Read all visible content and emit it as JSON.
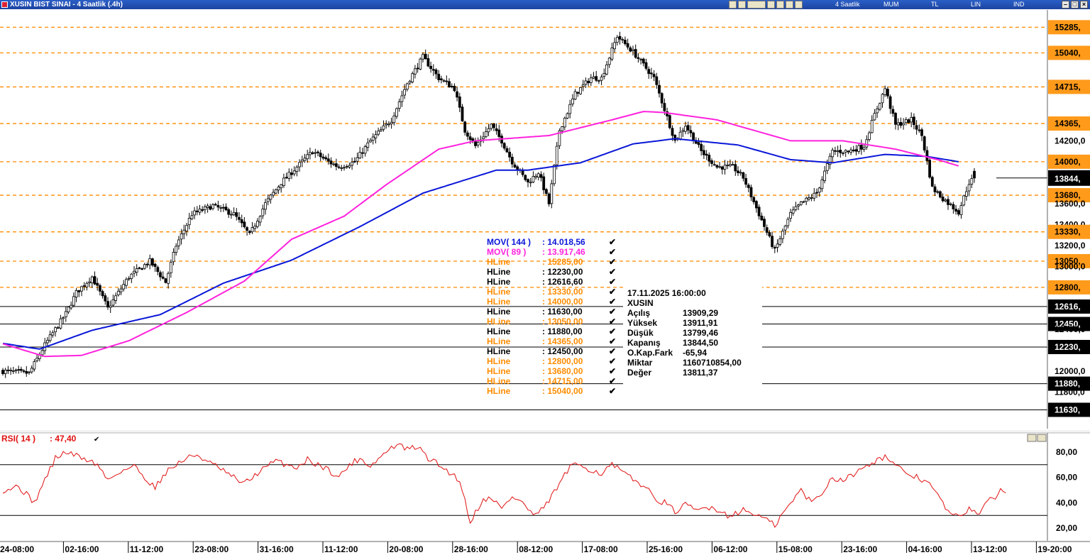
{
  "window": {
    "title": "XUSIN BIST SINAI - 4 Saatlik (.4h)",
    "toolbar": [
      "4 Saatlik",
      "MUM",
      "TL",
      "LIN",
      "IND"
    ]
  },
  "chart_data": {
    "type": "candlestick",
    "symbol": "XUSIN",
    "price_axis": {
      "range": [
        11450,
        15450
      ],
      "ticks": [
        {
          "v": 15285,
          "label": "15285,",
          "style": "hline-orange"
        },
        {
          "v": 15040,
          "label": "15040,",
          "style": "hline-orange"
        },
        {
          "v": 14715,
          "label": "14715,",
          "style": "hline-orange"
        },
        {
          "v": 14365,
          "label": "14365,",
          "style": "hline-orange"
        },
        {
          "v": 14200,
          "label": "14200,0",
          "style": "plain"
        },
        {
          "v": 14000,
          "label": "14000,",
          "style": "hline-orange"
        },
        {
          "v": 13844.5,
          "label": "13844,",
          "style": "last"
        },
        {
          "v": 13680,
          "label": "13680,",
          "style": "hline-orange"
        },
        {
          "v": 13600,
          "label": "13600,0",
          "style": "plain"
        },
        {
          "v": 13400,
          "label": "13400,0",
          "style": "plain"
        },
        {
          "v": 13330,
          "label": "13330,",
          "style": "hline-orange"
        },
        {
          "v": 13200,
          "label": "13200,0",
          "style": "plain"
        },
        {
          "v": 13050,
          "label": "13050,",
          "style": "hline-orange"
        },
        {
          "v": 13000,
          "label": "13000,0",
          "style": "plain"
        },
        {
          "v": 12800,
          "label": "12800,",
          "style": "hline-orange"
        },
        {
          "v": 12616.6,
          "label": "12616,",
          "style": "hline-black"
        },
        {
          "v": 12450,
          "label": "12450,",
          "style": "hline-black"
        },
        {
          "v": 12400,
          "label": "12400,0",
          "style": "plain"
        },
        {
          "v": 12230,
          "label": "12230,",
          "style": "hline-black"
        },
        {
          "v": 12000,
          "label": "12000,0",
          "style": "plain"
        },
        {
          "v": 11880,
          "label": "11880,",
          "style": "hline-black"
        },
        {
          "v": 11800,
          "label": "11800,0",
          "style": "plain"
        },
        {
          "v": 11630,
          "label": "11630,",
          "style": "hline-black"
        }
      ]
    },
    "x_labels": [
      "24-08:00",
      "02-16:00",
      "11-12:00",
      "23-08:00",
      "31-16:00",
      "11-12:00",
      "20-08:00",
      "28-16:00",
      "08-12:00",
      "17-08:00",
      "25-16:00",
      "06-12:00",
      "15-08:00",
      "23-16:00",
      "04-16:00",
      "13-12:00",
      "19-20:00"
    ],
    "close_anchors": [
      [
        0,
        12000
      ],
      [
        10,
        11980
      ],
      [
        16,
        12250
      ],
      [
        24,
        12550
      ],
      [
        28,
        12750
      ],
      [
        34,
        12900
      ],
      [
        40,
        12600
      ],
      [
        48,
        12900
      ],
      [
        56,
        13050
      ],
      [
        62,
        12850
      ],
      [
        66,
        13200
      ],
      [
        72,
        13500
      ],
      [
        80,
        13580
      ],
      [
        88,
        13500
      ],
      [
        94,
        13300
      ],
      [
        100,
        13600
      ],
      [
        106,
        13800
      ],
      [
        114,
        14000
      ],
      [
        118,
        14100
      ],
      [
        124,
        14000
      ],
      [
        128,
        13950
      ],
      [
        134,
        14000
      ],
      [
        140,
        14200
      ],
      [
        148,
        14400
      ],
      [
        154,
        14750
      ],
      [
        160,
        15000
      ],
      [
        166,
        14800
      ],
      [
        172,
        14700
      ],
      [
        176,
        14300
      ],
      [
        180,
        14150
      ],
      [
        186,
        14350
      ],
      [
        190,
        14200
      ],
      [
        194,
        14000
      ],
      [
        200,
        13800
      ],
      [
        204,
        13900
      ],
      [
        208,
        13600
      ],
      [
        212,
        14300
      ],
      [
        218,
        14650
      ],
      [
        224,
        14800
      ],
      [
        228,
        14800
      ],
      [
        234,
        15200
      ],
      [
        240,
        15050
      ],
      [
        248,
        14800
      ],
      [
        252,
        14500
      ],
      [
        256,
        14200
      ],
      [
        260,
        14350
      ],
      [
        266,
        14100
      ],
      [
        272,
        13950
      ],
      [
        278,
        13950
      ],
      [
        282,
        13850
      ],
      [
        288,
        13500
      ],
      [
        294,
        13150
      ],
      [
        300,
        13500
      ],
      [
        304,
        13600
      ],
      [
        310,
        13700
      ],
      [
        316,
        14100
      ],
      [
        322,
        14100
      ],
      [
        328,
        14150
      ],
      [
        332,
        14450
      ],
      [
        336,
        14700
      ],
      [
        340,
        14350
      ],
      [
        346,
        14400
      ],
      [
        350,
        14250
      ],
      [
        354,
        13750
      ],
      [
        358,
        13650
      ],
      [
        364,
        13520
      ],
      [
        368,
        13800
      ],
      [
        370,
        13844.5
      ]
    ],
    "series": [
      {
        "name": "MOV( 144 )",
        "value": "14.018,56",
        "color": "#0a17d8",
        "points": [
          [
            0,
            12265
          ],
          [
            14,
            12210
          ],
          [
            34,
            12390
          ],
          [
            60,
            12540
          ],
          [
            84,
            12840
          ],
          [
            110,
            13060
          ],
          [
            136,
            13380
          ],
          [
            160,
            13700
          ],
          [
            188,
            13920
          ],
          [
            200,
            13920
          ],
          [
            220,
            13990
          ],
          [
            240,
            14170
          ],
          [
            256,
            14220
          ],
          [
            280,
            14160
          ],
          [
            300,
            14020
          ],
          [
            316,
            13990
          ],
          [
            336,
            14070
          ],
          [
            352,
            14050
          ],
          [
            364,
            14000
          ]
        ]
      },
      {
        "name": "MOV( 89 )",
        "value": "13.917,46",
        "color": "#ff22dd",
        "points": [
          [
            0,
            12260
          ],
          [
            16,
            12140
          ],
          [
            30,
            12150
          ],
          [
            48,
            12290
          ],
          [
            70,
            12560
          ],
          [
            92,
            12860
          ],
          [
            110,
            13260
          ],
          [
            130,
            13480
          ],
          [
            146,
            13780
          ],
          [
            166,
            14120
          ],
          [
            180,
            14200
          ],
          [
            208,
            14250
          ],
          [
            232,
            14400
          ],
          [
            244,
            14480
          ],
          [
            252,
            14470
          ],
          [
            272,
            14400
          ],
          [
            300,
            14200
          ],
          [
            320,
            14200
          ],
          [
            340,
            14120
          ],
          [
            356,
            14020
          ],
          [
            364,
            13960
          ]
        ]
      }
    ],
    "hlines": [
      {
        "label": "HLine",
        "value": "15285,00",
        "color": "#ff8c00"
      },
      {
        "label": "HLine",
        "value": "12230,00",
        "color": "#000000"
      },
      {
        "label": "HLine",
        "value": "12616,60",
        "color": "#000000"
      },
      {
        "label": "HLine",
        "value": "13330,00",
        "color": "#ff8c00"
      },
      {
        "label": "HLine",
        "value": "14000,00",
        "color": "#ff8c00"
      },
      {
        "label": "HLine",
        "value": "11630,00",
        "color": "#000000"
      },
      {
        "label": "HLine",
        "value": "13050,00",
        "color": "#ff8c00"
      },
      {
        "label": "HLine",
        "value": "11880,00",
        "color": "#000000"
      },
      {
        "label": "HLine",
        "value": "14365,00",
        "color": "#ff8c00"
      },
      {
        "label": "HLine",
        "value": "12450,00",
        "color": "#000000"
      },
      {
        "label": "HLine",
        "value": "12800,00",
        "color": "#ff8c00"
      },
      {
        "label": "HLine",
        "value": "13680,00",
        "color": "#ff8c00"
      },
      {
        "label": "HLine",
        "value": "14715,00",
        "color": "#ff8c00"
      },
      {
        "label": "HLine",
        "value": "15040,00",
        "color": "#ff8c00"
      }
    ],
    "ohlc_info": {
      "date": "17.11.2025  16:00:00",
      "symbol": "XUSIN",
      "rows": [
        {
          "label": "Açılış",
          "value": "13909,29"
        },
        {
          "label": "Yüksek",
          "value": "13911,91"
        },
        {
          "label": "Düşük",
          "value": "13799,46"
        },
        {
          "label": "Kapanış",
          "value": "13844,50"
        },
        {
          "label": "O.Kap.Fark",
          "value": "-65,94"
        },
        {
          "label": "Miktar",
          "value": "1160710854,00"
        },
        {
          "label": "Değer",
          "value": "13811,37"
        }
      ]
    },
    "rsi": {
      "name": "RSI( 14 )",
      "value": "47,40",
      "color": "#e01010",
      "range": [
        10,
        95
      ],
      "levels": [
        70,
        30
      ],
      "ticks": [
        {
          "v": 80,
          "label": "80,00"
        },
        {
          "v": 60,
          "label": "60,00"
        },
        {
          "v": 40,
          "label": "40,00"
        },
        {
          "v": 20,
          "label": "20,00"
        }
      ],
      "anchors": [
        [
          0,
          50
        ],
        [
          6,
          53
        ],
        [
          12,
          40
        ],
        [
          16,
          58
        ],
        [
          20,
          75
        ],
        [
          24,
          80
        ],
        [
          28,
          77
        ],
        [
          32,
          74
        ],
        [
          36,
          70
        ],
        [
          40,
          58
        ],
        [
          44,
          64
        ],
        [
          50,
          69
        ],
        [
          54,
          60
        ],
        [
          58,
          52
        ],
        [
          62,
          64
        ],
        [
          66,
          70
        ],
        [
          70,
          75
        ],
        [
          74,
          78
        ],
        [
          78,
          72
        ],
        [
          82,
          68
        ],
        [
          86,
          62
        ],
        [
          92,
          55
        ],
        [
          98,
          65
        ],
        [
          104,
          73
        ],
        [
          108,
          70
        ],
        [
          112,
          68
        ],
        [
          116,
          74
        ],
        [
          120,
          70
        ],
        [
          124,
          66
        ],
        [
          128,
          60
        ],
        [
          132,
          70
        ],
        [
          136,
          75
        ],
        [
          140,
          69
        ],
        [
          146,
          80
        ],
        [
          150,
          86
        ],
        [
          154,
          82
        ],
        [
          158,
          84
        ],
        [
          162,
          75
        ],
        [
          166,
          70
        ],
        [
          170,
          64
        ],
        [
          174,
          58
        ],
        [
          178,
          25
        ],
        [
          182,
          40
        ],
        [
          186,
          45
        ],
        [
          190,
          35
        ],
        [
          194,
          45
        ],
        [
          198,
          40
        ],
        [
          202,
          30
        ],
        [
          206,
          35
        ],
        [
          212,
          55
        ],
        [
          216,
          68
        ],
        [
          220,
          70
        ],
        [
          224,
          66
        ],
        [
          228,
          63
        ],
        [
          232,
          70
        ],
        [
          236,
          64
        ],
        [
          240,
          58
        ],
        [
          244,
          54
        ],
        [
          248,
          44
        ],
        [
          252,
          40
        ],
        [
          256,
          33
        ],
        [
          260,
          38
        ],
        [
          264,
          34
        ],
        [
          270,
          37
        ],
        [
          276,
          30
        ],
        [
          282,
          34
        ],
        [
          288,
          30
        ],
        [
          294,
          22
        ],
        [
          298,
          34
        ],
        [
          304,
          50
        ],
        [
          308,
          40
        ],
        [
          312,
          48
        ],
        [
          316,
          60
        ],
        [
          320,
          58
        ],
        [
          324,
          62
        ],
        [
          328,
          70
        ],
        [
          332,
          72
        ],
        [
          336,
          77
        ],
        [
          340,
          68
        ],
        [
          344,
          64
        ],
        [
          348,
          60
        ],
        [
          352,
          57
        ],
        [
          356,
          46
        ],
        [
          360,
          33
        ],
        [
          364,
          28
        ],
        [
          368,
          36
        ],
        [
          372,
          32
        ],
        [
          376,
          42
        ],
        [
          378,
          45
        ],
        [
          380,
          50
        ],
        [
          382,
          47
        ]
      ]
    }
  }
}
